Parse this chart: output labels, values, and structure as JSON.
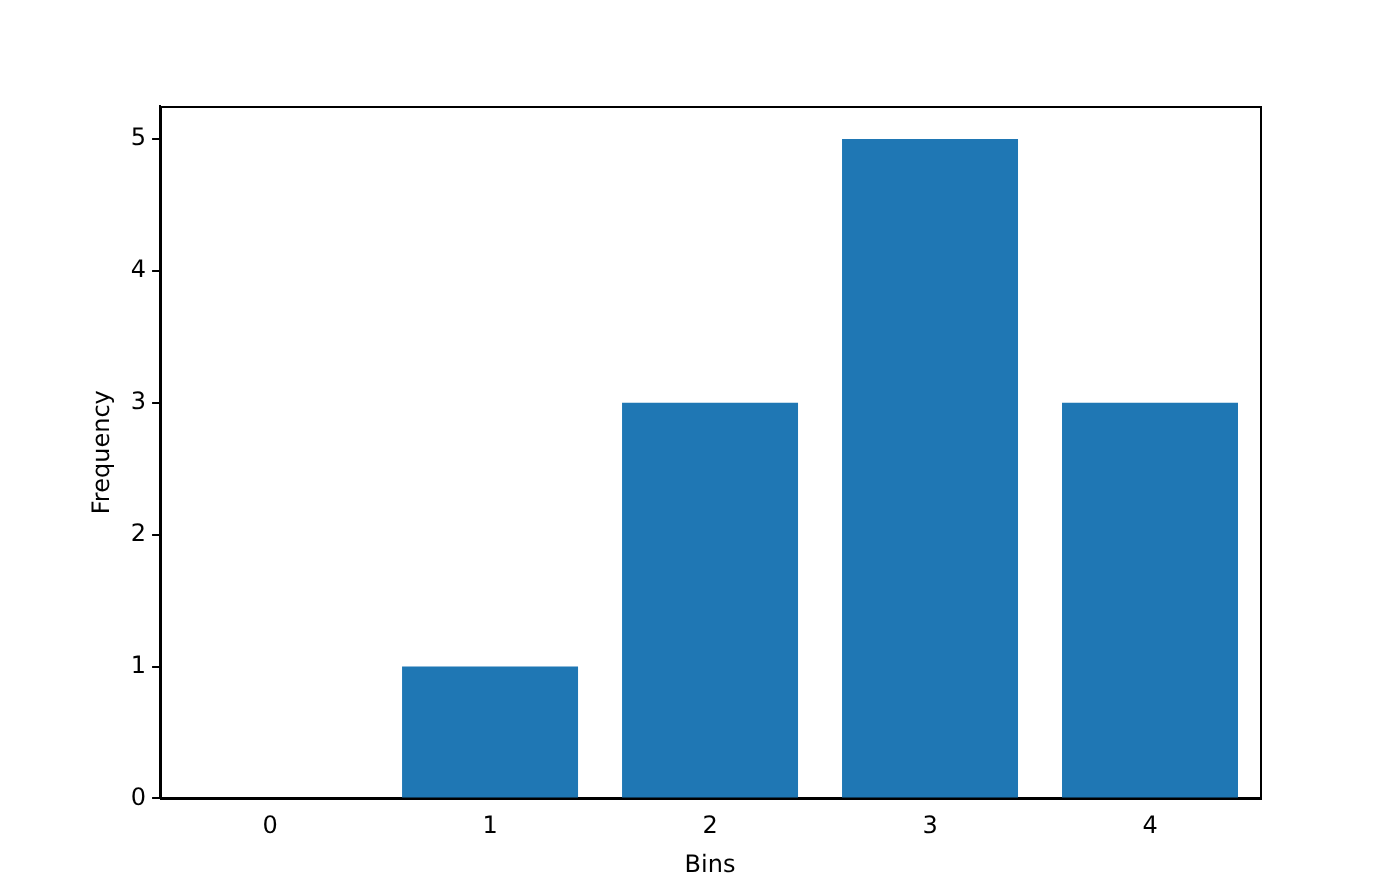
{
  "chart_data": {
    "type": "bar",
    "xlabel": "Bins",
    "ylabel": "Frequency",
    "categories": [
      "0",
      "1",
      "2",
      "3",
      "4"
    ],
    "values": [
      0,
      1,
      3,
      5,
      3
    ],
    "color": "#1f77b4",
    "ylim": [
      0,
      5.25
    ],
    "yticks": [
      0,
      1,
      2,
      3,
      4,
      5
    ],
    "grid": false,
    "legend": false
  }
}
